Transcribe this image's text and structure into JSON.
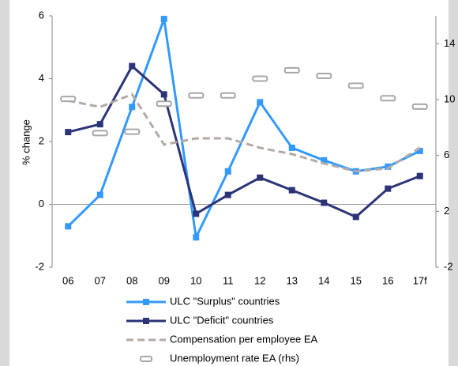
{
  "chart_data": {
    "type": "line",
    "y_label": "% change",
    "categories": [
      "06",
      "07",
      "08",
      "09",
      "10",
      "11",
      "12",
      "13",
      "14",
      "15",
      "16",
      "17f"
    ],
    "series": [
      {
        "name": "ULC \"Surplus\" countries",
        "color": "#3399ff",
        "marker": "square",
        "line_style": "solid",
        "values": [
          -0.7,
          0.3,
          3.1,
          5.9,
          -1.05,
          1.05,
          3.25,
          1.8,
          1.4,
          1.05,
          1.2,
          1.7
        ]
      },
      {
        "name": "ULC \"Deficit\" countries",
        "color": "#2b3477",
        "marker": "square",
        "line_style": "solid",
        "values": [
          2.3,
          2.55,
          4.4,
          3.5,
          -0.3,
          0.3,
          0.85,
          0.45,
          0.05,
          -0.4,
          0.5,
          0.9
        ]
      },
      {
        "name": "Compensation per employee EA",
        "color": "#b3aaa5",
        "marker": "none",
        "line_style": "dashed",
        "values": [
          3.3,
          3.1,
          3.5,
          1.9,
          2.1,
          2.1,
          1.8,
          1.6,
          1.3,
          1.05,
          1.15,
          1.8
        ]
      },
      {
        "name": "Unemployment rate EA (rhs)",
        "color": "#a6a6a6",
        "marker": "dash",
        "line_style": "none",
        "axis": "y2",
        "values": [
          10.05,
          7.6,
          7.7,
          9.7,
          10.3,
          10.3,
          11.5,
          12.1,
          11.7,
          11.0,
          10.1,
          9.5
        ]
      }
    ],
    "ylim": [
      -2,
      6
    ],
    "yticks": [
      -2,
      0,
      2,
      4,
      6
    ],
    "y2lim": [
      -2,
      16
    ],
    "y2ticks": [
      -2,
      2,
      6,
      10,
      14
    ]
  }
}
